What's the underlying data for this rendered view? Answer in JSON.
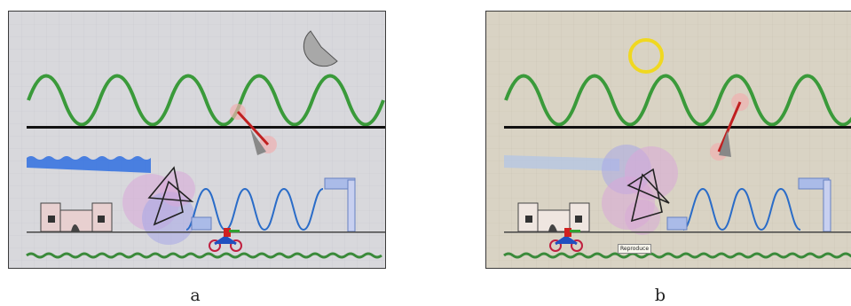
{
  "figure": {
    "panels": [
      {
        "id": "a",
        "caption": "a",
        "background": "#d8d8dc",
        "sky_object": "moon-icon"
      },
      {
        "id": "b",
        "caption": "b",
        "background": "#d9d3c4",
        "sky_object": "sun-icon",
        "tooltip": "Reproduce"
      }
    ]
  },
  "colors": {
    "wave": "#3a9a3a",
    "spring": "#2a6cc8",
    "ground": "#444444",
    "ocean": "#2060d0",
    "moon": "#9a9a9a",
    "sun": "#f0d820",
    "pendulum_disc": "#c8a0d8",
    "grass": "#3a8a3a"
  }
}
